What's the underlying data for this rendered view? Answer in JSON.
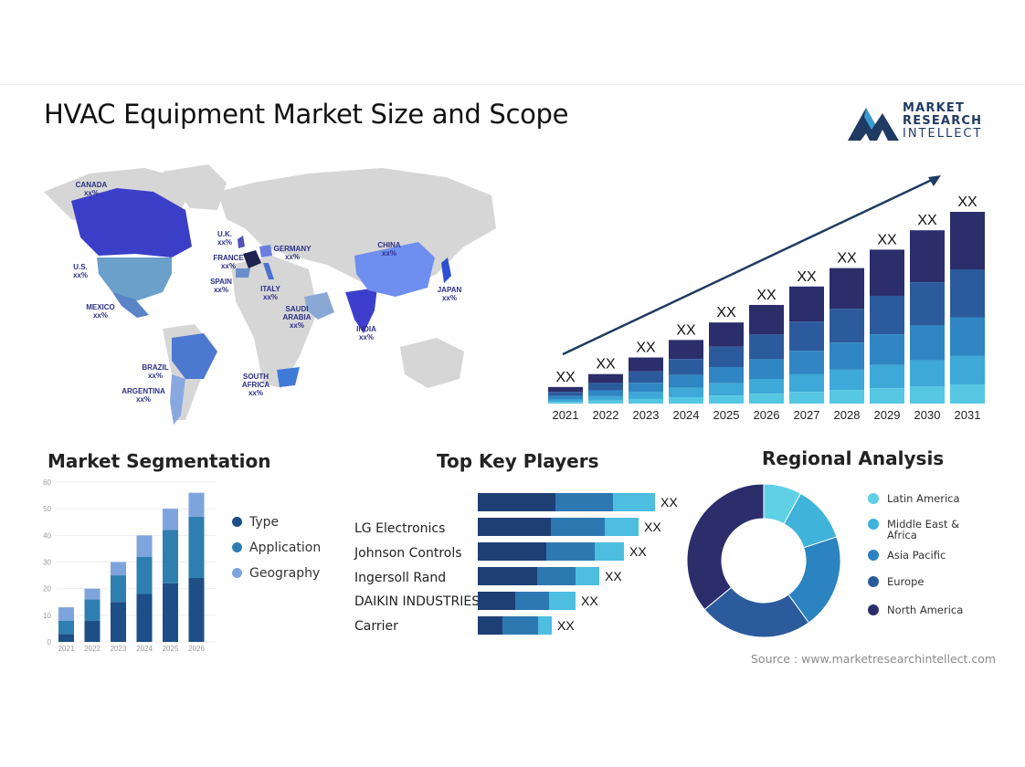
{
  "title": "HVAC Equipment Market Size and Scope",
  "logo": {
    "line1": "MARKET",
    "line2": "RESEARCH",
    "line3": "INTELLECT",
    "color": "#1f3b63"
  },
  "map_labels": [
    {
      "name": "CANADA",
      "value": "xx%"
    },
    {
      "name": "U.S.",
      "value": "xx%"
    },
    {
      "name": "MEXICO",
      "value": "xx%"
    },
    {
      "name": "BRAZIL",
      "value": "xx%"
    },
    {
      "name": "ARGENTINA",
      "value": "xx%"
    },
    {
      "name": "U.K.",
      "value": "xx%"
    },
    {
      "name": "FRANCE",
      "value": "xx%"
    },
    {
      "name": "SPAIN",
      "value": "xx%"
    },
    {
      "name": "GERMANY",
      "value": "xx%"
    },
    {
      "name": "ITALY",
      "value": "xx%"
    },
    {
      "name": "SAUDI ARABIA",
      "value": "xx%"
    },
    {
      "name": "SOUTH AFRICA",
      "value": "xx%"
    },
    {
      "name": "CHINA",
      "value": "xx%"
    },
    {
      "name": "INDIA",
      "value": "xx%"
    },
    {
      "name": "JAPAN",
      "value": "xx%"
    }
  ],
  "sections": {
    "segmentation": "Market Segmentation",
    "players": "Top Key Players",
    "regional": "Regional Analysis"
  },
  "source": "Source : www.marketresearchintellect.com",
  "chart_data": [
    {
      "type": "bar",
      "stacked": true,
      "categories": [
        "2021",
        "2022",
        "2023",
        "2024",
        "2025",
        "2026",
        "2027",
        "2028",
        "2029",
        "2030",
        "2031"
      ],
      "totals": [
        18,
        32,
        50,
        69,
        88,
        107,
        127,
        147,
        167,
        188,
        208
      ],
      "data_labels": [
        "XX",
        "XX",
        "XX",
        "XX",
        "XX",
        "XX",
        "XX",
        "XX",
        "XX",
        "XX",
        "XX"
      ],
      "colors": [
        "#2c2d6b",
        "#2b5b9c",
        "#2f86c3",
        "#3ea9d8",
        "#56c7e2"
      ],
      "trend_arrow": true
    },
    {
      "type": "bar",
      "stacked": true,
      "title": "Market Segmentation",
      "categories": [
        "2021",
        "2022",
        "2023",
        "2024",
        "2025",
        "2026"
      ],
      "yticks": [
        0,
        10,
        20,
        30,
        40,
        50,
        60
      ],
      "ylim": [
        0,
        60
      ],
      "series": [
        {
          "name": "Type",
          "values": [
            3,
            8,
            15,
            18,
            22,
            24
          ],
          "color": "#1d4f86"
        },
        {
          "name": "Application",
          "values": [
            5,
            8,
            10,
            14,
            20,
            23
          ],
          "color": "#2f7eb1"
        },
        {
          "name": "Geography",
          "values": [
            5,
            4,
            5,
            8,
            8,
            9
          ],
          "color": "#7ea4dd"
        }
      ]
    },
    {
      "type": "bar",
      "orientation": "horizontal",
      "stacked": true,
      "title": "Top Key Players",
      "categories": [
        "",
        "LG Electronics",
        "Johnson Controls",
        "Ingersoll Rand",
        "DAIKIN INDUSTRIES",
        "Carrier"
      ],
      "series": [
        {
          "values": [
            85,
            80,
            75,
            65,
            41,
            27
          ],
          "color": "#1d3f73"
        },
        {
          "values": [
            63,
            59,
            53,
            42,
            37,
            39
          ],
          "color": "#2e78b1"
        },
        {
          "values": [
            46,
            37,
            32,
            26,
            29,
            15
          ],
          "color": "#4dbde0"
        }
      ],
      "data_labels": [
        "XX",
        "XX",
        "XX",
        "XX",
        "XX",
        "XX"
      ]
    },
    {
      "type": "pie",
      "donut": true,
      "title": "Regional Analysis",
      "labels": [
        "Latin America",
        "Middle East & Africa",
        "Asia Pacific",
        "Europe",
        "North America"
      ],
      "values": [
        8,
        12,
        20,
        24,
        36
      ],
      "colors": [
        "#5fd0e6",
        "#3fb3d9",
        "#2b83bf",
        "#2b5b9c",
        "#2c2d6b"
      ]
    }
  ]
}
